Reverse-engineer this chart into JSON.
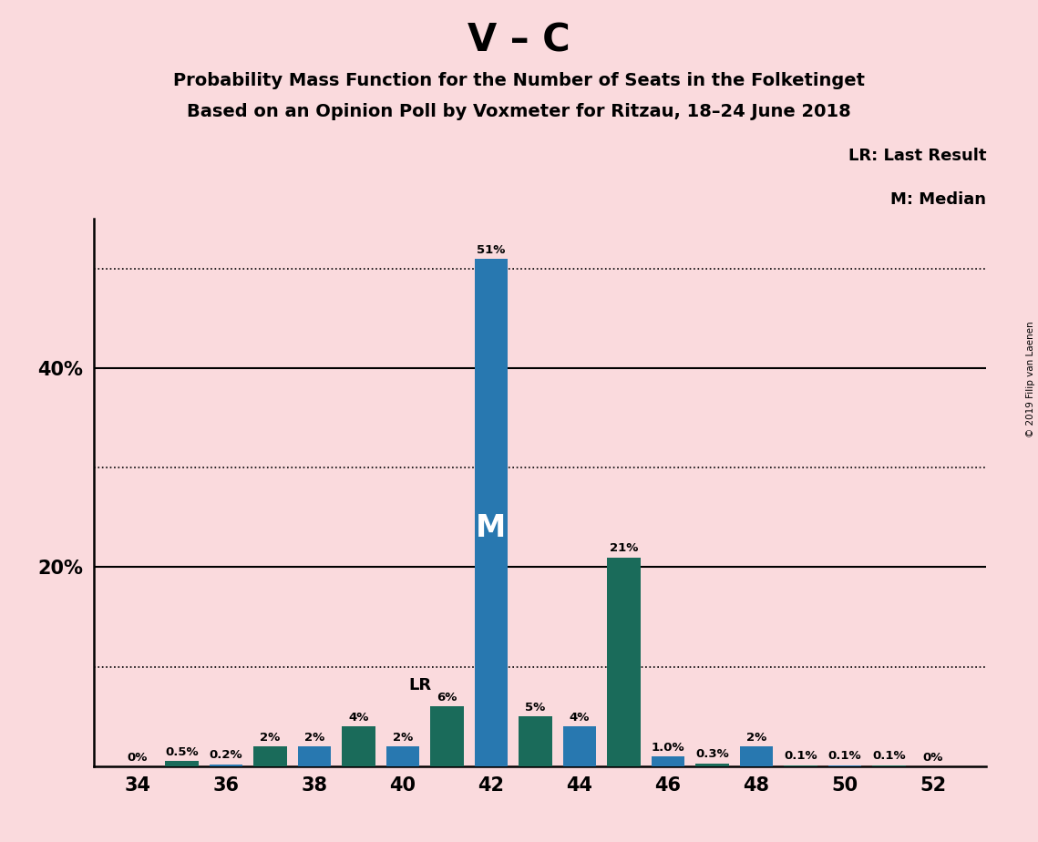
{
  "title_main": "V – C",
  "title_sub1": "Probability Mass Function for the Number of Seats in the Folketinget",
  "title_sub2": "Based on an Opinion Poll by Voxmeter for Ritzau, 18–24 June 2018",
  "copyright": "© 2019 Filip van Laenen",
  "background_color": "#fadadd",
  "seats": [
    34,
    35,
    36,
    37,
    38,
    39,
    40,
    41,
    42,
    43,
    44,
    45,
    46,
    47,
    48,
    49,
    50,
    51,
    52
  ],
  "values": [
    0.0,
    0.5,
    0.2,
    2.0,
    2.0,
    4.0,
    2.0,
    6.0,
    51.0,
    5.0,
    4.0,
    21.0,
    1.0,
    0.3,
    2.0,
    0.1,
    0.1,
    0.1,
    0.0
  ],
  "labels": [
    "0%",
    "0.5%",
    "0.2%",
    "2%",
    "2%",
    "4%",
    "2%",
    "6%",
    "51%",
    "5%",
    "4%",
    "21%",
    "1.0%",
    "0.3%",
    "2%",
    "0.1%",
    "0.1%",
    "0.1%",
    "0%"
  ],
  "colors": [
    "#2878b0",
    "#1a6b5a",
    "#2878b0",
    "#1a6b5a",
    "#2878b0",
    "#1a6b5a",
    "#2878b0",
    "#1a6b5a",
    "#2878b0",
    "#1a6b5a",
    "#2878b0",
    "#1a6b5a",
    "#2878b0",
    "#1a6b5a",
    "#2878b0",
    "#1a6b5a",
    "#2878b0",
    "#1a6b5a",
    "#2878b0"
  ],
  "lr_seat": 41,
  "median_seat": 42,
  "ylim_max": 55,
  "dotted_lines": [
    10,
    30,
    50
  ],
  "solid_lines": [
    20,
    40
  ],
  "lr_label": "LR",
  "median_label": "M",
  "legend_lr": "LR: Last Result",
  "legend_m": "M: Median",
  "bar_width": 0.75
}
